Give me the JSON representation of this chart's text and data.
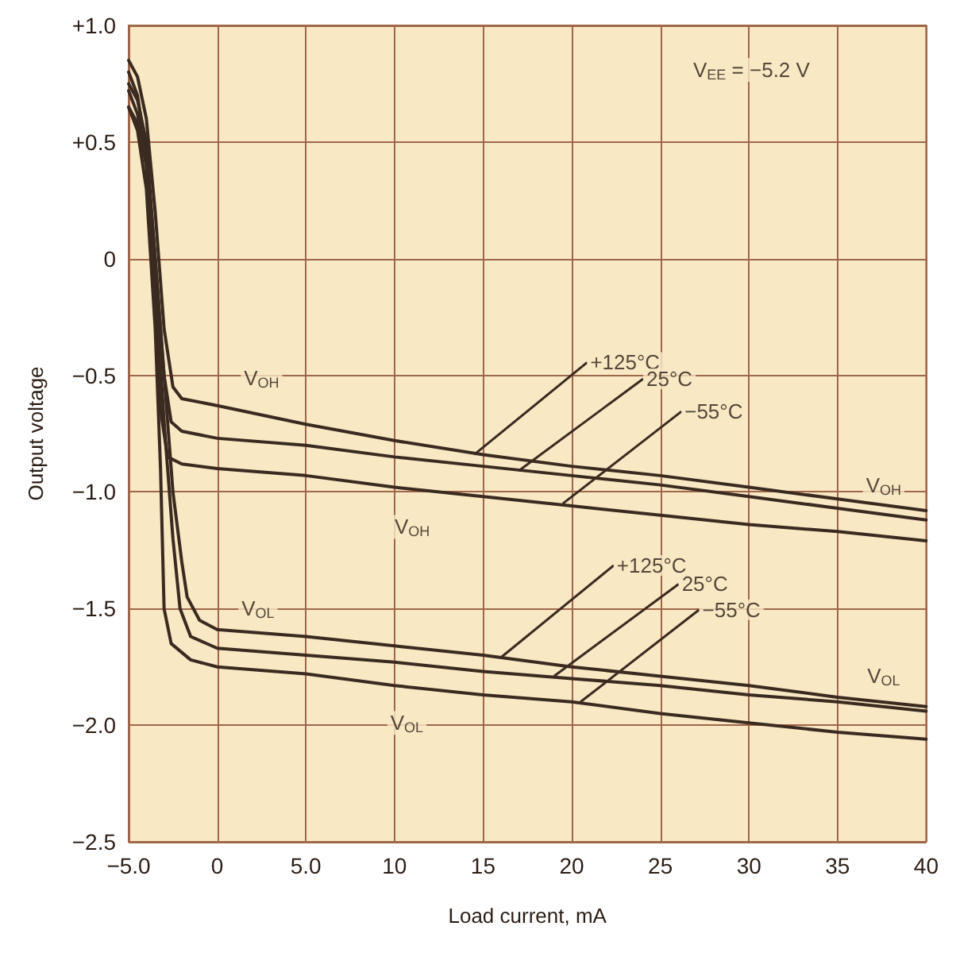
{
  "chart_data": {
    "type": "line",
    "xlabel": "Load current, mA",
    "ylabel": "Output voltage",
    "xlim": [
      -5,
      40
    ],
    "ylim": [
      -2.5,
      1.0
    ],
    "xticks": [
      {
        "value": -5,
        "label": "−5.0"
      },
      0,
      {
        "value": 5,
        "label": "5.0"
      },
      10,
      15,
      20,
      25,
      30,
      35,
      40
    ],
    "yticks": [
      {
        "value": -2.5,
        "label": "−2.5"
      },
      {
        "value": -2,
        "label": "−2.0"
      },
      {
        "value": -1.5,
        "label": "−1.5"
      },
      {
        "value": -1,
        "label": "−1.0"
      },
      {
        "value": -0.5,
        "label": "−0.5"
      },
      0,
      {
        "value": 0.5,
        "label": "+0.5"
      },
      {
        "value": 1,
        "label": "+1.0"
      }
    ],
    "grid": true,
    "marker": "none",
    "line_style": "solid",
    "series": [
      {
        "color": "#3a2a20",
        "x": [
          -5,
          -4.5,
          -4,
          -3.5,
          -3,
          -2.5,
          -2,
          0,
          5,
          10,
          15,
          20,
          25,
          30,
          35,
          40
        ],
        "values": [
          0.85,
          0.78,
          0.6,
          0.2,
          -0.3,
          -0.55,
          -0.6,
          -0.63,
          -0.71,
          -0.78,
          -0.84,
          -0.89,
          -0.93,
          -0.98,
          -1.03,
          -1.08
        ]
      },
      {
        "color": "#3a2a20",
        "x": [
          -5,
          -4.5,
          -4,
          -3.5,
          -3,
          -2.6,
          -2,
          0,
          5,
          10,
          15,
          20,
          25,
          30,
          35,
          40
        ],
        "values": [
          0.75,
          0.68,
          0.5,
          0.0,
          -0.5,
          -0.7,
          -0.74,
          -0.77,
          -0.8,
          -0.85,
          -0.89,
          -0.93,
          -0.97,
          -1.02,
          -1.07,
          -1.12
        ]
      },
      {
        "color": "#3a2a20",
        "x": [
          -5,
          -4.5,
          -4,
          -3.6,
          -3.2,
          -2.8,
          -2,
          0,
          5,
          10,
          15,
          20,
          25,
          30,
          35,
          40
        ],
        "values": [
          0.65,
          0.58,
          0.4,
          -0.1,
          -0.65,
          -0.85,
          -0.88,
          -0.9,
          -0.93,
          -0.98,
          -1.02,
          -1.06,
          -1.1,
          -1.14,
          -1.17,
          -1.21
        ]
      },
      {
        "color": "#3a2a20",
        "x": [
          -5,
          -4.5,
          -4,
          -3.5,
          -3,
          -2.5,
          -2,
          -1.7,
          -1,
          0,
          5,
          10,
          15,
          20,
          25,
          30,
          35,
          40
        ],
        "values": [
          0.8,
          0.7,
          0.45,
          0.0,
          -0.5,
          -1.0,
          -1.3,
          -1.45,
          -1.55,
          -1.59,
          -1.62,
          -1.66,
          -1.7,
          -1.75,
          -1.79,
          -1.83,
          -1.88,
          -1.92
        ]
      },
      {
        "color": "#3a2a20",
        "x": [
          -5,
          -4.5,
          -4,
          -3.5,
          -3,
          -2.5,
          -2.1,
          -1.5,
          0,
          5,
          10,
          15,
          20,
          25,
          30,
          35,
          40
        ],
        "values": [
          0.72,
          0.62,
          0.4,
          -0.1,
          -0.7,
          -1.2,
          -1.5,
          -1.62,
          -1.67,
          -1.7,
          -1.73,
          -1.77,
          -1.8,
          -1.83,
          -1.87,
          -1.9,
          -1.94
        ]
      },
      {
        "color": "#3a2a20",
        "x": [
          -5,
          -4.5,
          -4,
          -3.5,
          -3.2,
          -3,
          -2.6,
          -1.5,
          0,
          5,
          10,
          15,
          20,
          25,
          30,
          35,
          40
        ],
        "values": [
          0.65,
          0.55,
          0.3,
          -0.3,
          -0.9,
          -1.5,
          -1.65,
          -1.72,
          -1.75,
          -1.78,
          -1.83,
          -1.87,
          -1.9,
          -1.95,
          -1.99,
          -2.03,
          -2.06
        ]
      }
    ],
    "annotations": [
      "V$_{EE}$ = −5.2 V",
      {
        "text": "V$_{OH}$",
        "x": 2.5,
        "y": -0.51
      },
      {
        "text": "V$_{OH}$",
        "x": 11,
        "y": -1.15
      },
      {
        "text": "V$_{OH}$",
        "x": 37.6,
        "y": -0.97
      },
      {
        "text": "V$_{OL}$",
        "x": 2.3,
        "y": -1.5
      },
      {
        "text": "V$_{OL}$",
        "x": 10.7,
        "y": -1.99
      },
      {
        "text": "V$_{OL}$",
        "x": 37.6,
        "y": -1.79
      },
      {
        "text": "+125°C",
        "x": 14.5,
        "y": -0.84
      },
      {
        "text": "25°C",
        "x": 17,
        "y": -0.91
      },
      {
        "text": "−55°C",
        "x": 19.5,
        "y": -1.05
      },
      {
        "text": "+125°C",
        "x": 16,
        "y": -1.71
      },
      {
        "text": "25°C",
        "x": 19,
        "y": -1.79
      },
      {
        "text": "−55°C",
        "x": 20.5,
        "y": -1.9
      }
    ]
  }
}
